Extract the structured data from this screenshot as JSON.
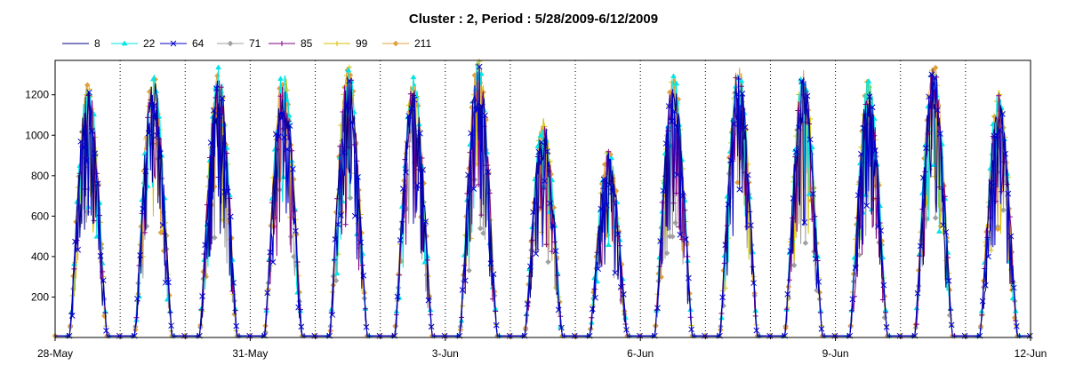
{
  "chart_data": {
    "type": "line",
    "title": "Cluster : 2, Period : 5/28/2009-6/12/2009",
    "xlabel": "",
    "ylabel": "",
    "xlim": [
      "2009-05-28",
      "2009-06-12"
    ],
    "ylim": [
      0,
      1370
    ],
    "x_ticks": [
      "28-May",
      "31-May",
      "3-Jun",
      "6-Jun",
      "9-Jun",
      "12-Jun"
    ],
    "y_ticks": [
      200,
      400,
      600,
      800,
      1000,
      1200
    ],
    "grid": "dotted vertical lines at each day",
    "legend_position": "top-left",
    "series": [
      {
        "name": "8",
        "color": "#000080",
        "marker": "none"
      },
      {
        "name": "22",
        "color": "#00e5e5",
        "marker": "triangle"
      },
      {
        "name": "64",
        "color": "#0000cc",
        "marker": "x"
      },
      {
        "name": "71",
        "color": "#a0a0a0",
        "marker": "diamond"
      },
      {
        "name": "85",
        "color": "#800080",
        "marker": "plus"
      },
      {
        "name": "99",
        "color": "#d4c000",
        "marker": "plus"
      },
      {
        "name": "211",
        "color": "#e0a040",
        "marker": "diamond"
      }
    ],
    "daily_peaks": [
      {
        "day": "2009-05-28",
        "peak": 1250
      },
      {
        "day": "2009-05-29",
        "peak": 1280
      },
      {
        "day": "2009-05-30",
        "peak": 1310
      },
      {
        "day": "2009-05-31",
        "peak": 1300
      },
      {
        "day": "2009-06-01",
        "peak": 1330
      },
      {
        "day": "2009-06-02",
        "peak": 1270
      },
      {
        "day": "2009-06-03",
        "peak": 1360
      },
      {
        "day": "2009-06-04",
        "peak": 1070
      },
      {
        "day": "2009-06-05",
        "peak": 920
      },
      {
        "day": "2009-06-06",
        "peak": 1280
      },
      {
        "day": "2009-06-07",
        "peak": 1330
      },
      {
        "day": "2009-06-08",
        "peak": 1300
      },
      {
        "day": "2009-06-09",
        "peak": 1260
      },
      {
        "day": "2009-06-10",
        "peak": 1340
      },
      {
        "day": "2009-06-11",
        "peak": 1200
      }
    ]
  }
}
